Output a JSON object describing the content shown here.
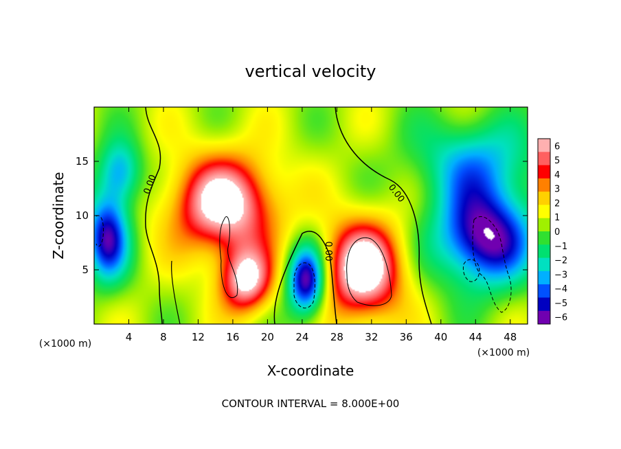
{
  "chart_data": {
    "type": "heatmap",
    "title": "vertical velocity",
    "xlabel": "X-coordinate",
    "ylabel": "Z-coordinate",
    "x_unit_note": "(×1000 m)",
    "y_unit_note": "(×1000 m)",
    "xlim": [
      0,
      50
    ],
    "ylim": [
      0,
      20
    ],
    "x_ticks": [
      4,
      8,
      12,
      16,
      20,
      24,
      28,
      32,
      36,
      40,
      44,
      48
    ],
    "y_ticks": [
      5,
      10,
      15
    ],
    "colorbar": {
      "ticks": [
        6,
        5,
        4,
        3,
        2,
        1,
        0,
        -1,
        -2,
        -3,
        -4,
        -5,
        -6
      ],
      "colors": [
        "#ffb0b0",
        "#ff6060",
        "#ff0000",
        "#ff8000",
        "#ffd000",
        "#ffff00",
        "#a0f000",
        "#30e030",
        "#00e070",
        "#00e0c0",
        "#00b0ff",
        "#0050ff",
        "#0000c0",
        "#7000b0"
      ]
    },
    "contour_labels": [
      "0.00",
      "0.00",
      "0.00"
    ],
    "footer": "CONTOUR INTERVAL = 8.000E+00",
    "features": [
      {
        "x": 15,
        "z": 11,
        "sx": 6,
        "sz": 4.5,
        "value": 6.5
      },
      {
        "x": 17.5,
        "z": 4,
        "sx": 3,
        "sz": 3,
        "value": 6
      },
      {
        "x": 31,
        "z": 5,
        "sx": 4.5,
        "sz": 4.5,
        "value": 7
      },
      {
        "x": 24.5,
        "z": 4,
        "sx": 2.2,
        "sz": 3.2,
        "value": -7
      },
      {
        "x": 45,
        "z": 8,
        "sx": 5.5,
        "sz": 4.5,
        "value": -7
      },
      {
        "x": 1.5,
        "z": 8,
        "sx": 2.5,
        "sz": 4,
        "value": -6
      },
      {
        "x": 44,
        "z": 15,
        "sx": 7,
        "sz": 4,
        "value": -3.5
      },
      {
        "x": 3,
        "z": 14,
        "sx": 2.5,
        "sz": 3,
        "value": -4
      }
    ]
  }
}
